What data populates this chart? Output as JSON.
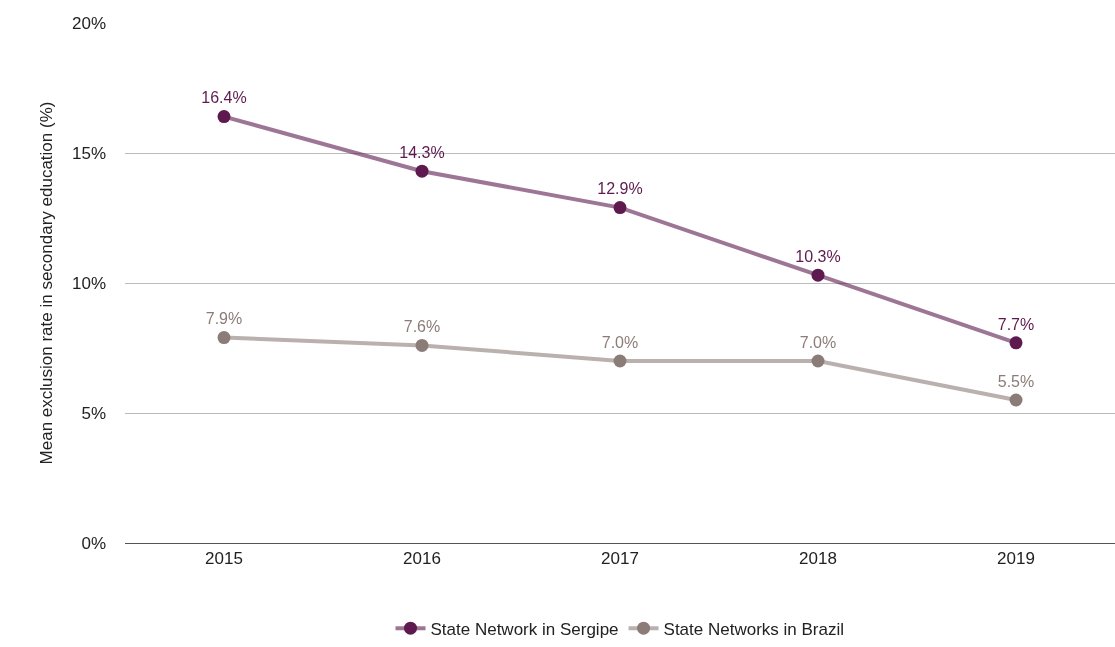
{
  "chart_data": {
    "type": "line",
    "ylabel": "Mean exclusion rate in secondary education (%)",
    "categories": [
      "2015",
      "2016",
      "2017",
      "2018",
      "2019"
    ],
    "series": [
      {
        "name": "State Network in Sergipe",
        "color": "#5e1a4e",
        "values": [
          16.4,
          14.3,
          12.9,
          10.3,
          7.7
        ],
        "value_labels": [
          "16.4%",
          "14.3%",
          "12.9%",
          "10.3%",
          "7.7%"
        ]
      },
      {
        "name": "State Networks in Brazil",
        "color": "#8c7c78",
        "values": [
          7.9,
          7.6,
          7.0,
          7.0,
          5.5
        ],
        "value_labels": [
          "7.9%",
          "7.6%",
          "7.0%",
          "7.0%",
          "5.5%"
        ]
      }
    ],
    "ylim": [
      0,
      20
    ],
    "yticks": [
      {
        "value": 0,
        "label": "0%"
      },
      {
        "value": 5,
        "label": "5%"
      },
      {
        "value": 10,
        "label": "10%"
      },
      {
        "value": 15,
        "label": "15%"
      },
      {
        "value": 20,
        "label": "20%"
      }
    ],
    "grid": "y",
    "legend": "bottom",
    "marker": "circle",
    "line_style": "solid"
  }
}
